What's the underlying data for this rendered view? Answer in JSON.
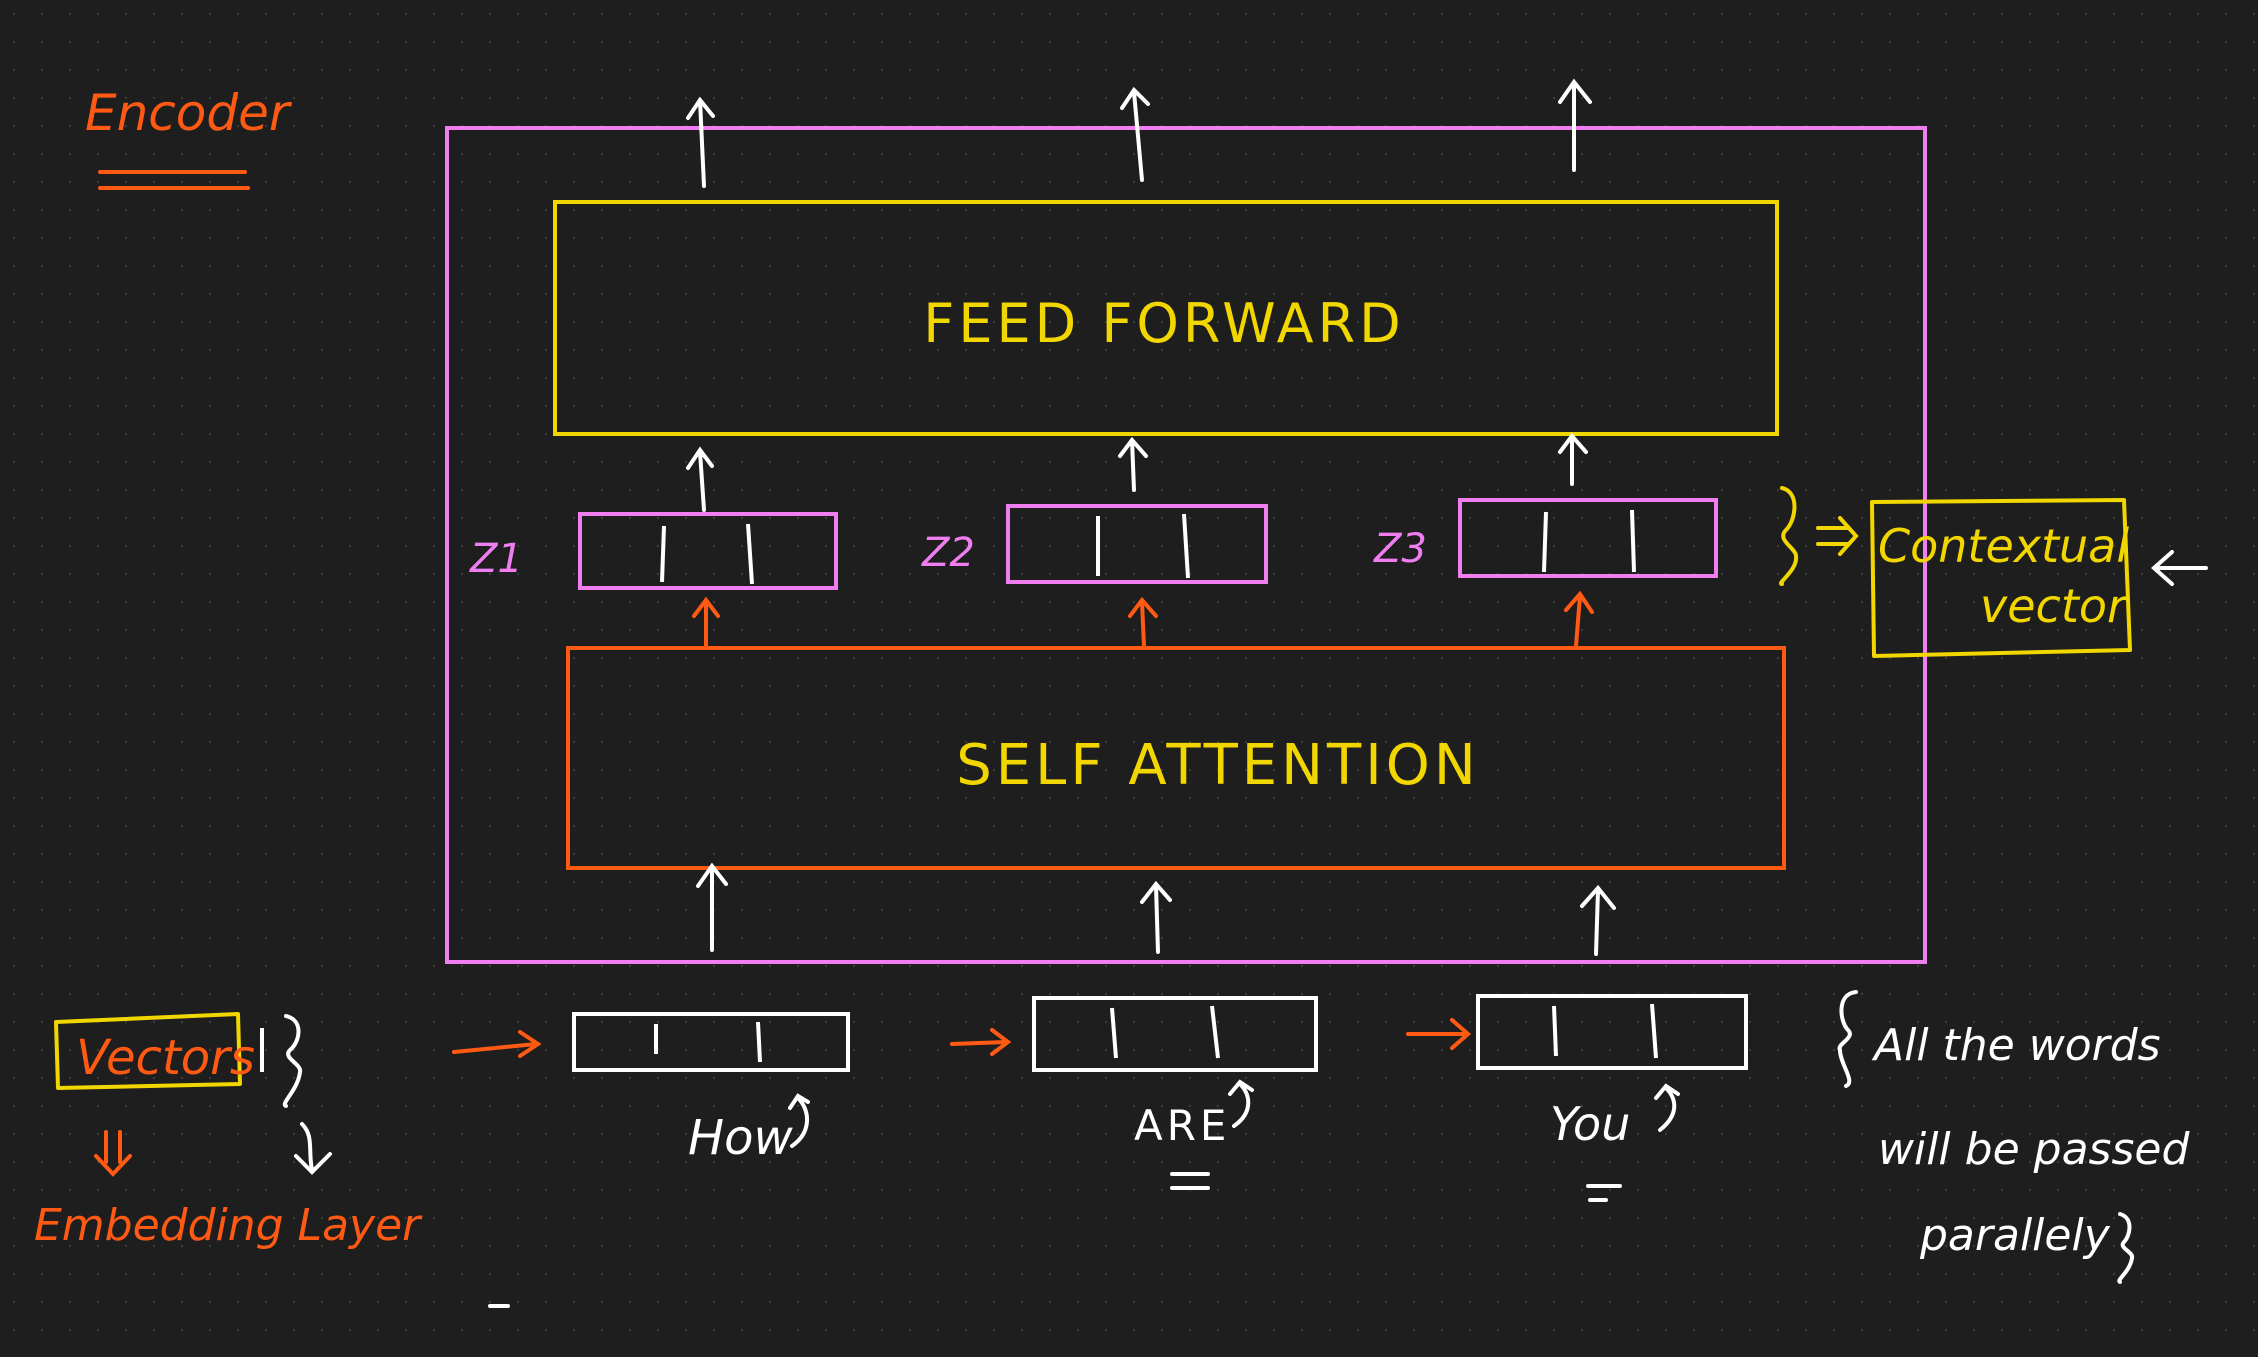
{
  "title": "Encoder",
  "blocks": {
    "feed_forward": "FEED FORWARD",
    "self_attention": "SELF ATTENTION"
  },
  "z_labels": [
    "Z1",
    "Z2",
    "Z3"
  ],
  "contextual": {
    "line1": "Contextual",
    "line2": "vector"
  },
  "inputs": {
    "words": [
      "How",
      "ARE",
      "You"
    ]
  },
  "vectors": {
    "label": "Vectors",
    "embedding_label": "Embedding Layer"
  },
  "note": {
    "line1": "All the words",
    "line2": "will be passed",
    "line3": "parallely"
  },
  "colors": {
    "background": "#1e1e1e",
    "encoder_box": "#f07ef0",
    "feed_forward": "#f2d600",
    "self_attention": "#ff5a14",
    "white": "#ffffff",
    "orange_text": "#ff5a14",
    "yellow_text": "#f2d600",
    "pink_text": "#f07ef0"
  }
}
